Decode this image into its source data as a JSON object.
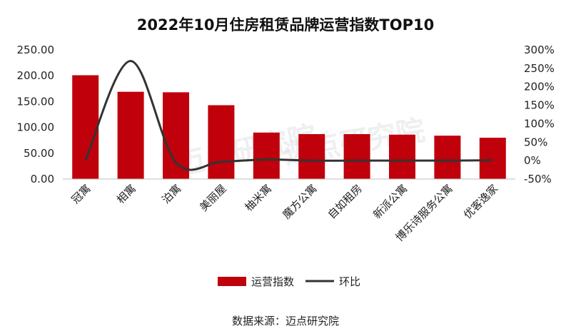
{
  "chart_data": {
    "type": "bar",
    "title": "2022年10月住房租赁品牌运营指数TOP10",
    "categories": [
      "冠寓",
      "相寓",
      "泊寓",
      "美丽屋",
      "柚米寓",
      "魔方公寓",
      "自如租房",
      "新派公寓",
      "博乐诗服务公寓",
      "优客逸家"
    ],
    "series": [
      {
        "name": "运营指数",
        "type": "bar",
        "axis": "left",
        "color": "#c0000b",
        "values": [
          201,
          169,
          168,
          143,
          90,
          87,
          87,
          86,
          84,
          80
        ]
      },
      {
        "name": "环比",
        "type": "line",
        "axis": "right",
        "color": "#333333",
        "values": [
          0,
          270,
          -5,
          -3,
          3,
          0,
          0,
          0,
          0,
          1
        ]
      }
    ],
    "y_left": {
      "ylim": [
        0,
        250
      ],
      "ticks": [
        "0.00",
        "50.00",
        "100.00",
        "150.00",
        "200.00",
        "250.00"
      ]
    },
    "y_right": {
      "ylim": [
        -50,
        300
      ],
      "ticks": [
        "-50%",
        "0%",
        "50%",
        "100%",
        "150%",
        "200%",
        "250%",
        "300%"
      ]
    },
    "legend": {
      "position": "bottom",
      "items": [
        "运营指数",
        "环比"
      ]
    },
    "grid": false
  },
  "source_text": "数据来源：迈点研究院",
  "watermark_text": "迈点研究院"
}
